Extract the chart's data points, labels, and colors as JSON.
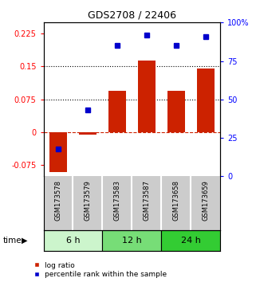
{
  "title": "GDS2708 / 22406",
  "samples": [
    "GSM173578",
    "GSM173579",
    "GSM173583",
    "GSM173587",
    "GSM173658",
    "GSM173659"
  ],
  "log_ratio": [
    -0.09,
    -0.005,
    0.095,
    0.163,
    0.095,
    0.145
  ],
  "percentile_rank": [
    0.18,
    0.43,
    0.85,
    0.92,
    0.85,
    0.91
  ],
  "time_groups": [
    {
      "label": "6 h",
      "start": 0,
      "end": 2,
      "color": "#ccf5cc"
    },
    {
      "label": "12 h",
      "start": 2,
      "end": 4,
      "color": "#77dd77"
    },
    {
      "label": "24 h",
      "start": 4,
      "end": 6,
      "color": "#33cc33"
    }
  ],
  "ylim_left": [
    -0.1,
    0.25
  ],
  "ylim_right": [
    0,
    1.0
  ],
  "yticks_left": [
    -0.075,
    0,
    0.075,
    0.15,
    0.225
  ],
  "yticks_right": [
    0,
    0.25,
    0.5,
    0.75,
    1.0
  ],
  "ytick_labels_right": [
    "0",
    "25",
    "50",
    "75",
    "100%"
  ],
  "ytick_labels_left": [
    "-0.075",
    "0",
    "0.075",
    "0.15",
    "0.225"
  ],
  "hlines": [
    0.075,
    0.15
  ],
  "bar_color": "#cc2200",
  "dot_color": "#0000cc",
  "legend_bar_label": "log ratio",
  "legend_dot_label": "percentile rank within the sample",
  "time_label": "time",
  "background_color": "#ffffff",
  "sample_bg_color": "#cccccc",
  "sample_divider_color": "#ffffff"
}
